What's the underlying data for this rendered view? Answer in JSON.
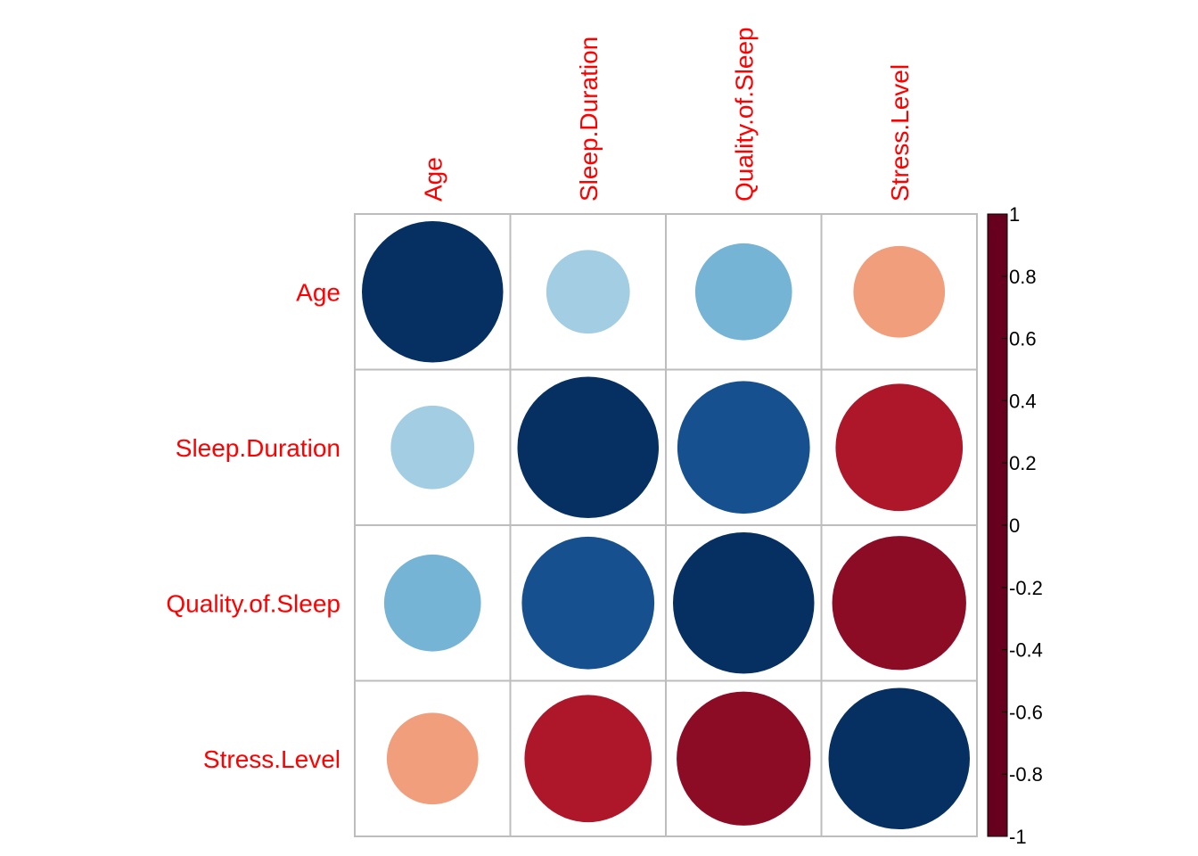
{
  "chart_data": {
    "type": "heatmap",
    "style": "circle correlation matrix",
    "variables": [
      "Age",
      "Sleep.Duration",
      "Quality.of.Sleep",
      "Stress.Level"
    ],
    "matrix": [
      [
        1.0,
        0.35,
        0.47,
        -0.42
      ],
      [
        0.35,
        1.0,
        0.88,
        -0.81
      ],
      [
        0.47,
        0.88,
        1.0,
        -0.9
      ],
      [
        -0.42,
        -0.81,
        -0.9,
        1.0
      ]
    ],
    "colorbar": {
      "ticks": [
        "1",
        "0.8",
        "0.6",
        "0.4",
        "0.2",
        "0",
        "-0.2",
        "-0.4",
        "-0.6",
        "-0.8",
        "-1"
      ],
      "range": [
        -1,
        1
      ]
    },
    "label_color": "#ff0000",
    "palette": [
      "#67001f",
      "#b2182b",
      "#d6604d",
      "#f4a582",
      "#fddbc7",
      "#ffffff",
      "#d1e5f0",
      "#92c5de",
      "#4393c3",
      "#2166ac",
      "#053061"
    ]
  }
}
